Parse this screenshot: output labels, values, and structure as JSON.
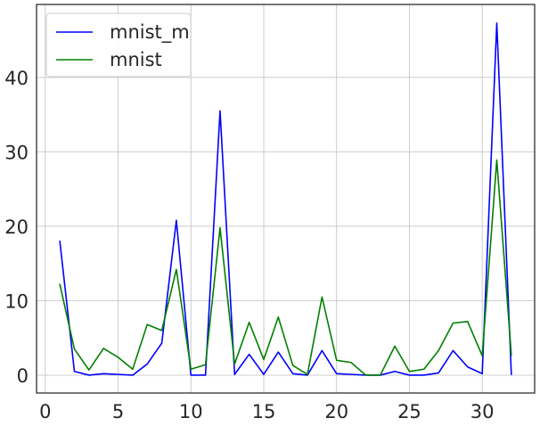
{
  "chart_data": {
    "type": "line",
    "title": "",
    "xlabel": "",
    "ylabel": "",
    "xlim": [
      -0.6,
      33.6
    ],
    "ylim": [
      -2.4,
      49.8
    ],
    "grid": true,
    "legend_position": "top-left",
    "x_ticks": [
      0,
      5,
      10,
      15,
      20,
      25,
      30
    ],
    "y_ticks": [
      0,
      10,
      20,
      30,
      40
    ],
    "x": [
      1,
      2,
      3,
      4,
      5,
      6,
      7,
      8,
      9,
      10,
      11,
      12,
      13,
      14,
      15,
      16,
      17,
      18,
      19,
      20,
      21,
      22,
      23,
      24,
      25,
      26,
      27,
      28,
      29,
      30,
      31,
      32
    ],
    "series": [
      {
        "name": "mnist_m",
        "color": "#0000ff",
        "values": [
          18.0,
          0.5,
          0.0,
          0.2,
          0.1,
          0.0,
          1.5,
          4.3,
          20.8,
          0.0,
          0.0,
          35.5,
          0.1,
          2.8,
          0.1,
          3.1,
          0.2,
          0.0,
          3.3,
          0.2,
          0.1,
          0.0,
          0.0,
          0.5,
          0.0,
          0.0,
          0.3,
          3.3,
          1.1,
          0.2,
          47.3,
          0.1
        ]
      },
      {
        "name": "mnist",
        "color": "#008000",
        "values": [
          12.2,
          3.5,
          0.7,
          3.6,
          2.4,
          0.8,
          6.8,
          6.0,
          14.2,
          0.8,
          1.4,
          19.8,
          1.5,
          7.1,
          2.1,
          7.8,
          1.3,
          0.1,
          10.5,
          2.0,
          1.7,
          0.0,
          0.0,
          3.9,
          0.5,
          0.8,
          3.3,
          7.0,
          7.2,
          2.6,
          28.9,
          2.7
        ]
      }
    ]
  }
}
